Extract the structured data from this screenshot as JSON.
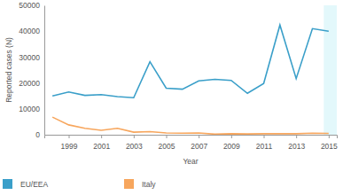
{
  "chart_data": {
    "type": "line",
    "x_label": "Year",
    "y_label": "Reported cases (N)",
    "x": [
      1998,
      1999,
      2000,
      2001,
      2002,
      2003,
      2004,
      2005,
      2006,
      2007,
      2008,
      2009,
      2010,
      2011,
      2012,
      2013,
      2014,
      2015
    ],
    "series": [
      {
        "name": "EU/EEA",
        "color": "#3a9fc9",
        "values": [
          15000,
          16500,
          15200,
          15500,
          14700,
          14300,
          28200,
          18000,
          17600,
          20800,
          21400,
          21000,
          16000,
          19800,
          42400,
          21700,
          41000,
          40000
        ]
      },
      {
        "name": "Italy",
        "color": "#f7a65d",
        "values": [
          6800,
          3800,
          2500,
          1700,
          2500,
          1000,
          1200,
          700,
          600,
          700,
          200,
          400,
          300,
          400,
          400,
          400,
          600,
          500
        ]
      }
    ],
    "xlim": [
      1997.5,
      2015.5
    ],
    "xticks": [
      1999,
      2001,
      2003,
      2005,
      2007,
      2009,
      2011,
      2013,
      2015
    ],
    "ylim": [
      0,
      50000
    ],
    "yticks": [
      0,
      10000,
      20000,
      30000,
      40000,
      50000
    ],
    "highlight": [
      2014.7,
      2015.5
    ],
    "grid": false,
    "legend": "bottom"
  }
}
